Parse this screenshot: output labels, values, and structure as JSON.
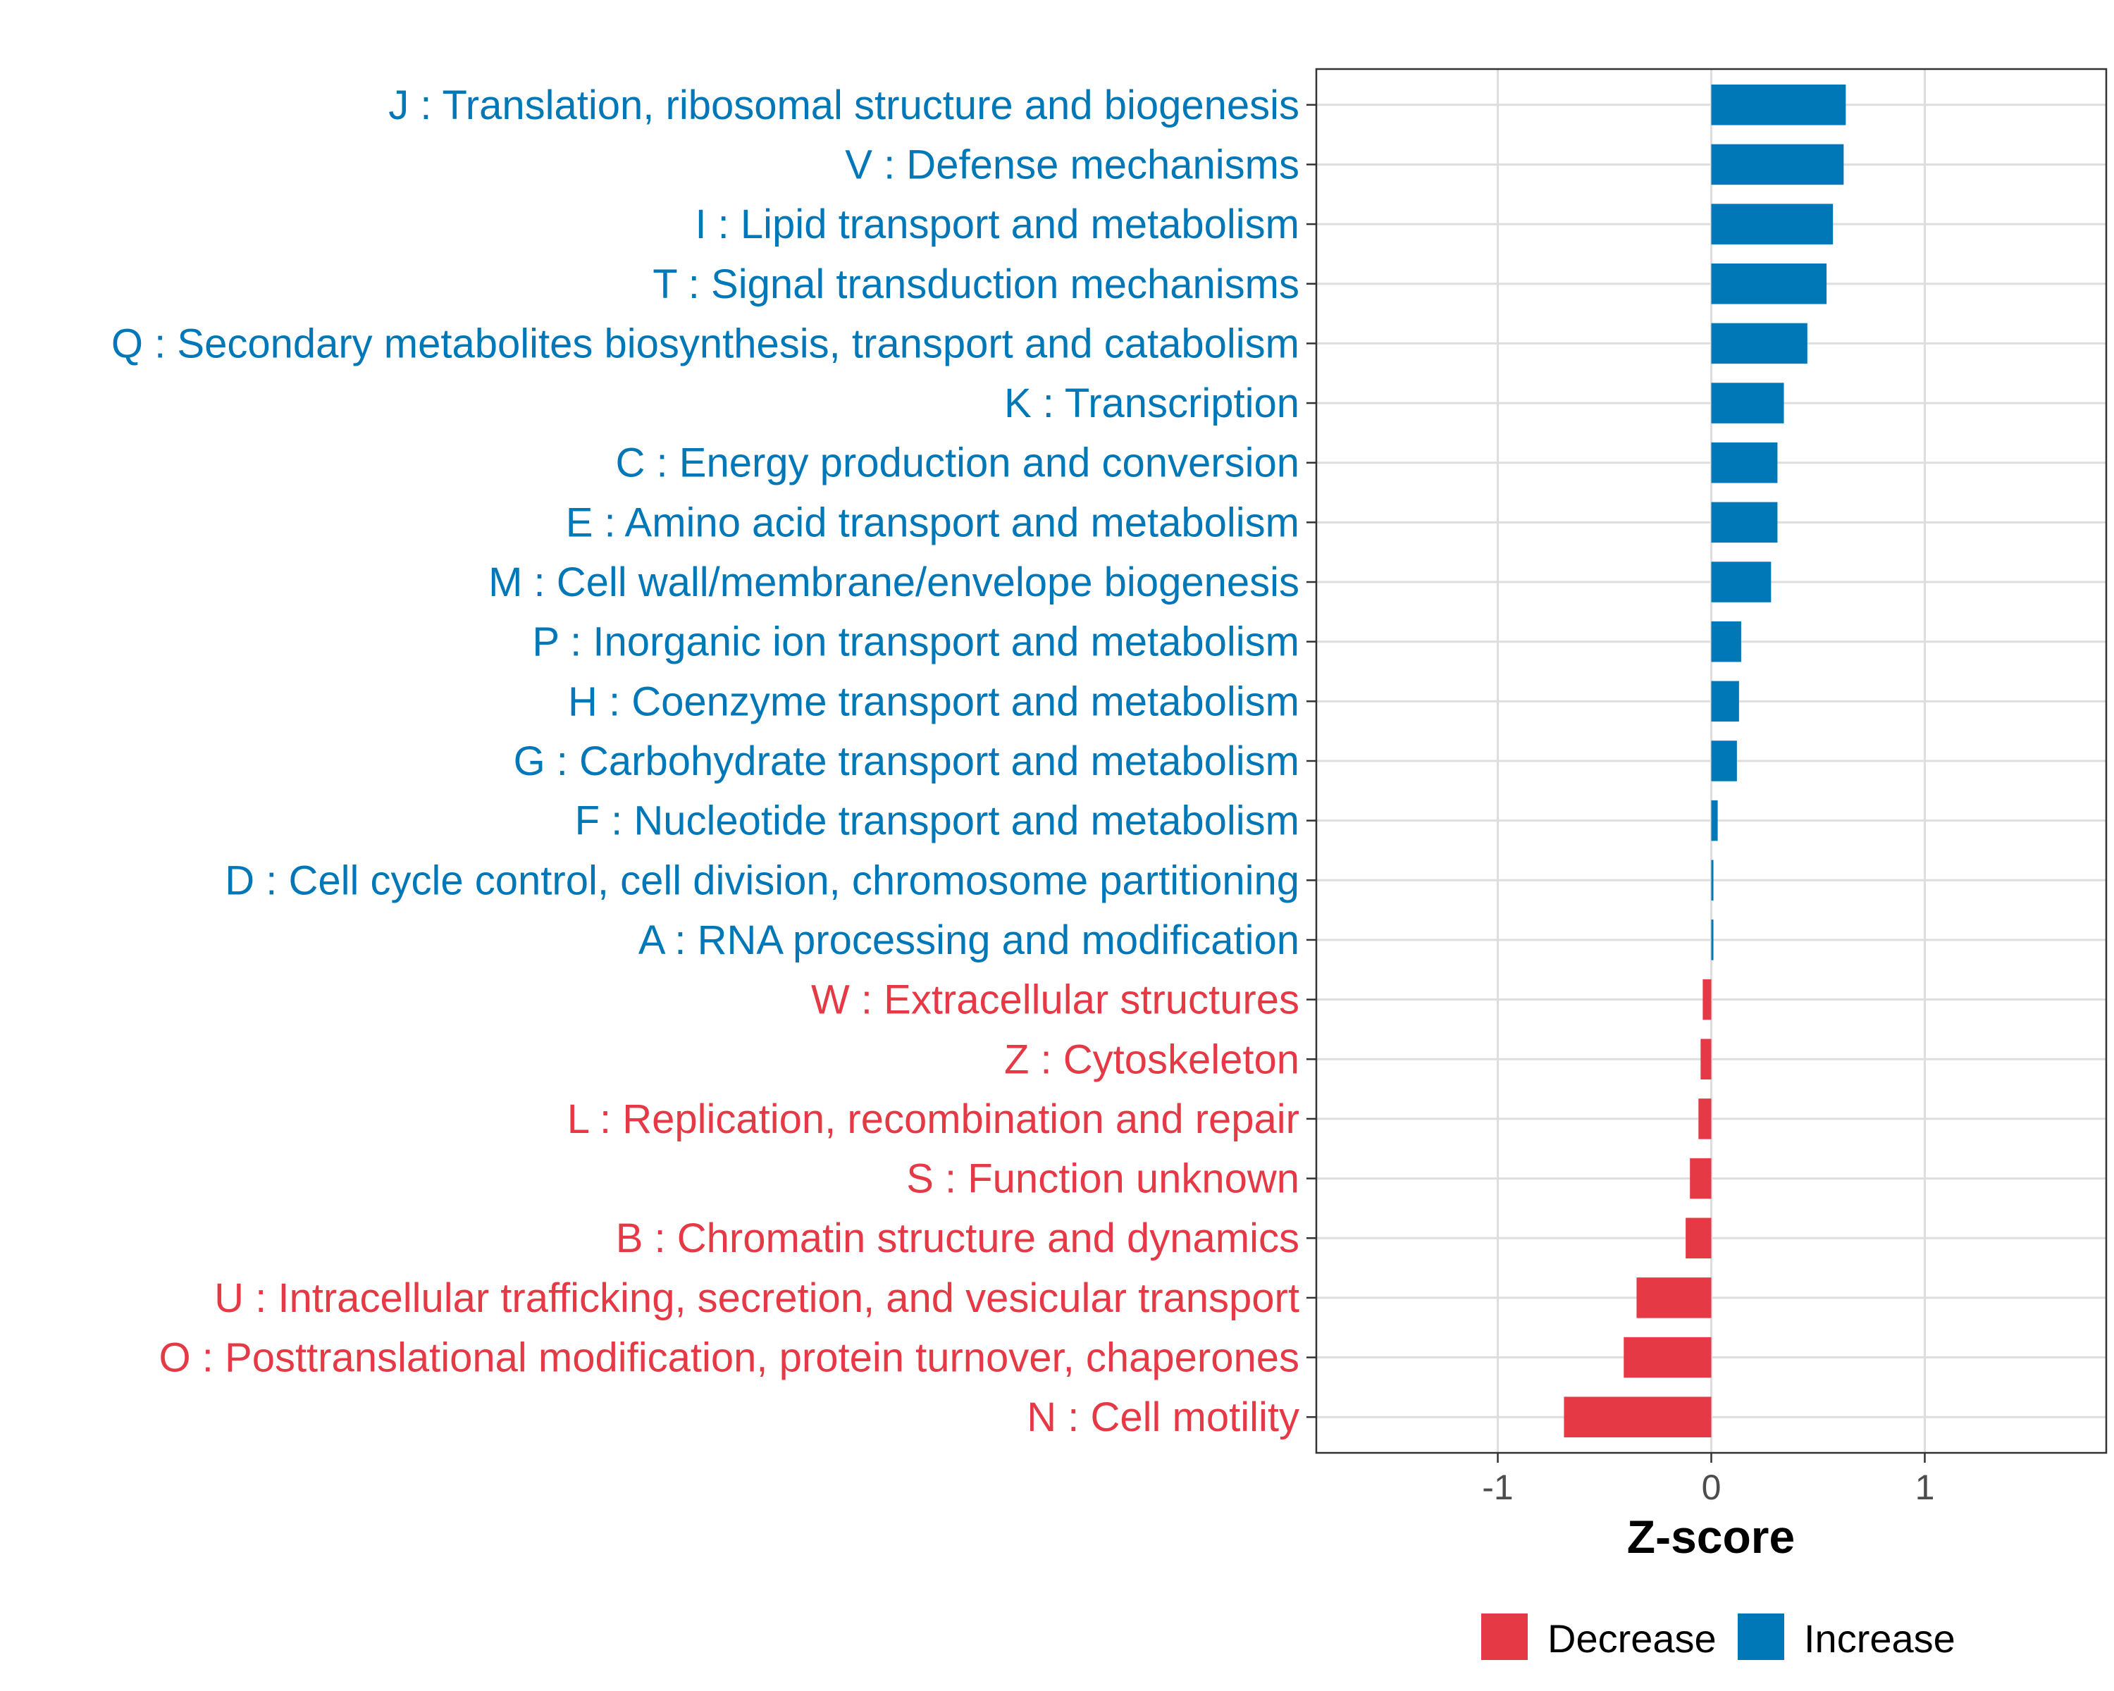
{
  "chart_data": {
    "type": "bar",
    "orientation": "horizontal",
    "xlabel": "Z-score",
    "ylabel": "",
    "xlim": [
      -1.85,
      1.85
    ],
    "xticks": [
      -1,
      0,
      1
    ],
    "xtick_labels": [
      "-1",
      "0",
      "1"
    ],
    "grid": true,
    "legend_position": "bottom",
    "legend": [
      {
        "label": "Decrease",
        "color": "#E63946"
      },
      {
        "label": "Increase",
        "color": "#0077B6"
      }
    ],
    "categories": [
      "J : Translation, ribosomal structure and biogenesis",
      "V : Defense mechanisms",
      "I : Lipid transport and metabolism",
      "T : Signal transduction mechanisms",
      "Q : Secondary metabolites biosynthesis, transport and catabolism",
      "K : Transcription",
      "C : Energy production and conversion",
      "E : Amino acid transport and metabolism",
      "M : Cell wall/membrane/envelope biogenesis",
      "P : Inorganic ion transport and metabolism",
      "H : Coenzyme transport and metabolism",
      "G : Carbohydrate transport and metabolism",
      "F : Nucleotide transport and metabolism",
      "D : Cell cycle control, cell division, chromosome partitioning",
      "A : RNA processing and modification",
      "W : Extracellular structures",
      "Z : Cytoskeleton",
      "L : Replication, recombination and repair",
      "S : Function unknown",
      "B : Chromatin structure and dynamics",
      "U : Intracellular trafficking, secretion, and vesicular transport",
      "O : Posttranslational modification, protein turnover, chaperones",
      "N : Cell motility"
    ],
    "values": [
      0.63,
      0.62,
      0.57,
      0.54,
      0.45,
      0.34,
      0.31,
      0.31,
      0.28,
      0.14,
      0.13,
      0.12,
      0.03,
      0.01,
      0.01,
      -0.04,
      -0.05,
      -0.06,
      -0.1,
      -0.12,
      -0.35,
      -0.41,
      -0.69
    ],
    "directions": [
      "Increase",
      "Increase",
      "Increase",
      "Increase",
      "Increase",
      "Increase",
      "Increase",
      "Increase",
      "Increase",
      "Increase",
      "Increase",
      "Increase",
      "Increase",
      "Increase",
      "Increase",
      "Decrease",
      "Decrease",
      "Decrease",
      "Decrease",
      "Decrease",
      "Decrease",
      "Decrease",
      "Decrease"
    ]
  }
}
